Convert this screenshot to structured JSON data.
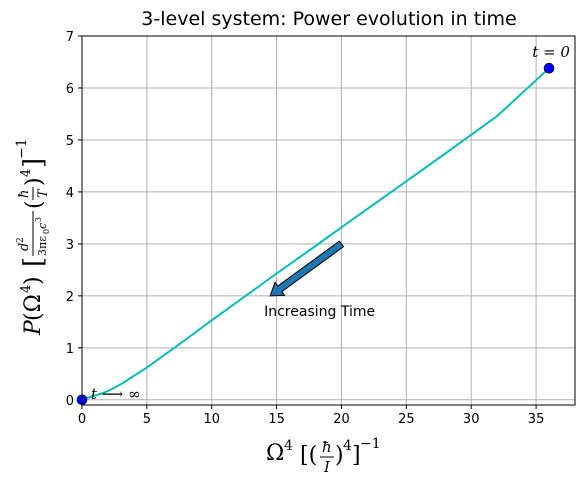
{
  "chart_data": {
    "type": "line",
    "title": "3-level system: Power evolution in time",
    "xlabel": "Ω⁴ [(ħ/I)⁴]⁻¹",
    "ylabel": "P(Ω⁴)  [d²/(3πε₀c³) (ħ/T)⁴]⁻¹",
    "xlim": [
      0,
      38
    ],
    "ylim": [
      -0.1,
      7
    ],
    "xticks": [
      0,
      5,
      10,
      15,
      20,
      25,
      30,
      35
    ],
    "yticks": [
      0,
      1,
      2,
      3,
      4,
      5,
      6,
      7
    ],
    "grid": true,
    "series": [
      {
        "color": "#00bfbf",
        "x": [
          0,
          0.5,
          1,
          1.5,
          2,
          2.5,
          3,
          3.5,
          4,
          5,
          6,
          7,
          8,
          10,
          12,
          15,
          18,
          20,
          24,
          28,
          32,
          36
        ],
        "y": [
          0,
          0.04,
          0.08,
          0.12,
          0.17,
          0.23,
          0.3,
          0.38,
          0.46,
          0.62,
          0.8,
          0.98,
          1.16,
          1.53,
          1.89,
          2.43,
          2.96,
          3.32,
          4.03,
          4.74,
          5.46,
          6.38
        ]
      }
    ],
    "markers": [
      {
        "x": 36,
        "y": 6.38,
        "label": "t = 0",
        "color": "#0000ff"
      },
      {
        "x": 0,
        "y": 0,
        "label": "t ⟶ ∞",
        "color": "#0000ff"
      }
    ],
    "annotation": {
      "text": "Increasing Time",
      "arrow_from": [
        20,
        3.0
      ],
      "arrow_to": [
        14.5,
        2.0
      ],
      "color": "#1f77b4"
    }
  }
}
